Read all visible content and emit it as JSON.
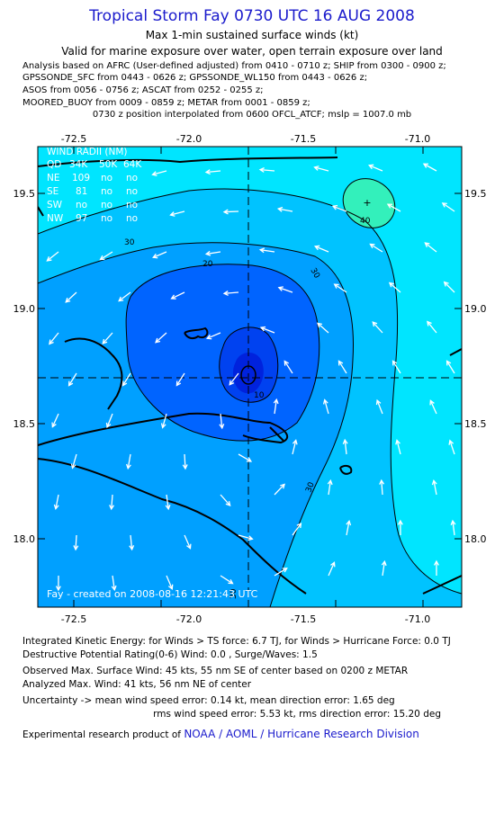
{
  "header": {
    "title": "Tropical Storm Fay 0730 UTC 16 AUG 2008",
    "subtitle1": "Max 1-min sustained surface winds (kt)",
    "subtitle2": "Valid for marine exposure over water, open terrain exposure over land"
  },
  "analysis_lines": [
    "Analysis based on  AFRC (User-defined adjusted) from 0410 - 0710 z;  SHIP from 0300 - 0900 z;",
    "GPSSONDE_SFC from 0443 - 0626 z;  GPSSONDE_WL150 from 0443 - 0626 z;",
    "ASOS from 0056 - 0756 z;  ASCAT from 0252 - 0255 z;",
    "MOORED_BUOY from 0009 - 0859 z;  METAR from 0001 - 0859 z;"
  ],
  "position_note": "0730 z position interpolated from 0600 OFCL_ATCF; mslp = 1007.0 mb",
  "map": {
    "lon_ticks": [
      "-72.5",
      "-72.0",
      "-71.5",
      "-71.0"
    ],
    "lat_ticks": [
      "19.5",
      "19.0",
      "18.5",
      "18.0"
    ],
    "contour_labels": [
      "30",
      "20",
      "30",
      "10",
      "40",
      "30",
      "30"
    ],
    "credit": "Fay - created on 2008-08-16 12:21:43 UTC",
    "wind_radii": {
      "title": "WIND RADII (NM)",
      "header": [
        "QD",
        "34K",
        "50K",
        "64K"
      ],
      "rows": [
        [
          "NE",
          "109",
          "no",
          "no"
        ],
        [
          "SE",
          "81",
          "no",
          "no"
        ],
        [
          "SW",
          "no",
          "no",
          "no"
        ],
        [
          "NW",
          "97",
          "no",
          "no"
        ]
      ]
    },
    "colors": {
      "ocean_outer": "#00e5ff",
      "band_30_40": "#00c3ff",
      "band_20_30": "#00a0ff",
      "band_10_20": "#0064ff",
      "band_5_10": "#0042f0",
      "core": "#0022dd",
      "high_spot": "#33f0bb"
    }
  },
  "stats": {
    "ike": "Integrated Kinetic Energy:  for Winds > TS force: 6.7 TJ,  for Winds > Hurricane Force: 0.0 TJ",
    "dpr": "Destructive Potential Rating(0-6)   Wind: 0.0 , Surge/Waves: 1.5",
    "obs_max": "Observed Max. Surface Wind: 45 kts, 55 nm SE of center based on 0200 z METAR",
    "an_max": "Analyzed Max. Wind: 41 kts, 56 nm NE of center",
    "unc1": "Uncertainty -> mean wind speed error: 0.14 kt,   mean direction error: 1.65 deg",
    "unc2": "rms wind speed error: 5.53 kt,   rms direction error: 15.20 deg",
    "credit_prefix": "Experimental research product of ",
    "credit_link": "NOAA / AOML / Hurricane Research Division"
  }
}
